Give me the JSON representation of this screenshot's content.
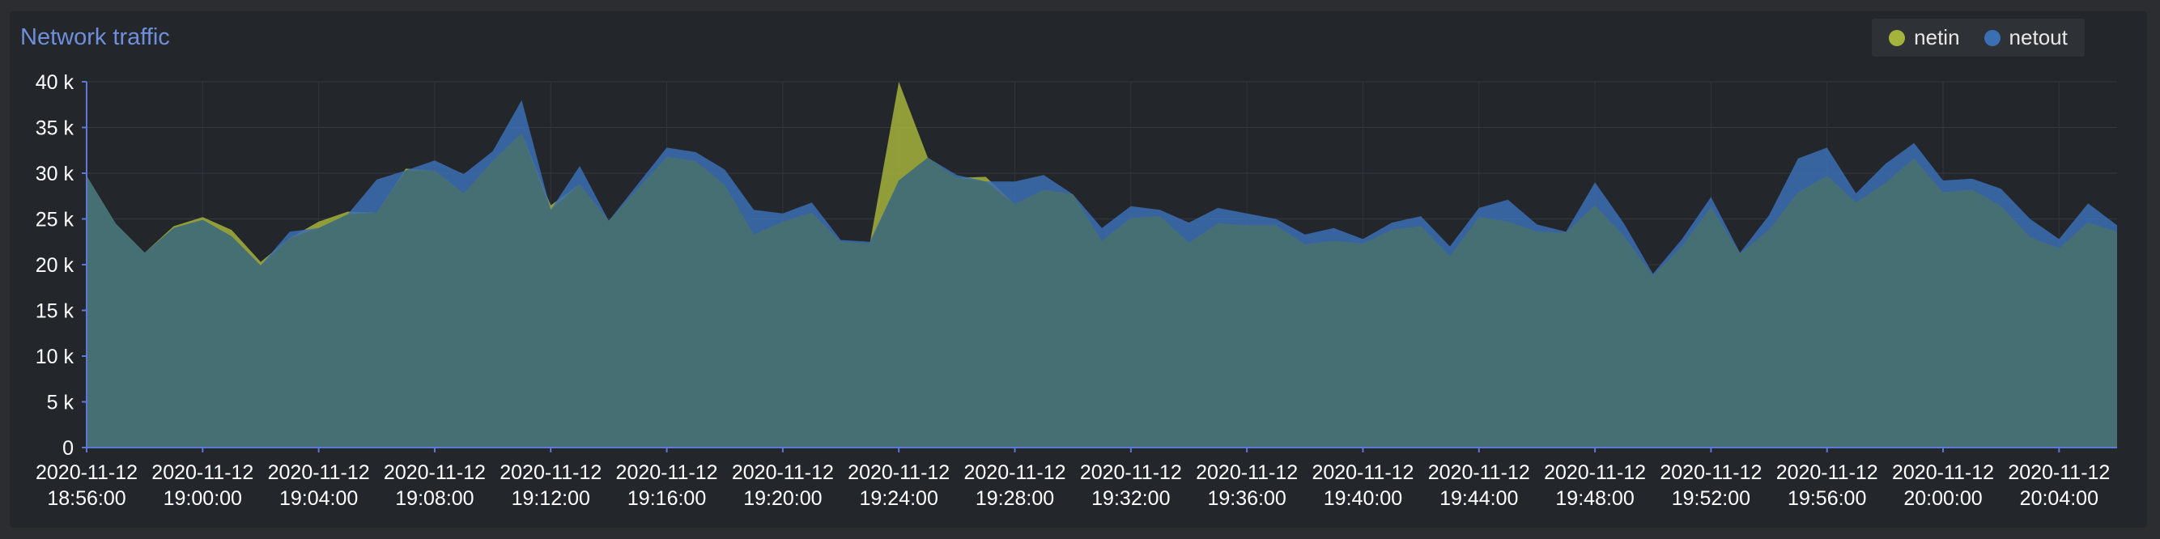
{
  "panel": {
    "title": "Network traffic"
  },
  "colors": {
    "netin": "#a3b33b",
    "netout": "#3b6fb3",
    "overlap": "#466f74",
    "axis": "#5f78d8"
  },
  "chart_data": {
    "type": "area",
    "title": "Network traffic",
    "xlabel": "",
    "ylabel": "",
    "ylim": [
      0,
      40000
    ],
    "yticks": [
      "0",
      "5 k",
      "10 k",
      "15 k",
      "20 k",
      "25 k",
      "30 k",
      "35 k",
      "40 k"
    ],
    "xtick_labels": [
      [
        "2020-11-12",
        "18:56:00"
      ],
      [
        "2020-11-12",
        "19:00:00"
      ],
      [
        "2020-11-12",
        "19:04:00"
      ],
      [
        "2020-11-12",
        "19:08:00"
      ],
      [
        "2020-11-12",
        "19:12:00"
      ],
      [
        "2020-11-12",
        "19:16:00"
      ],
      [
        "2020-11-12",
        "19:20:00"
      ],
      [
        "2020-11-12",
        "19:24:00"
      ],
      [
        "2020-11-12",
        "19:28:00"
      ],
      [
        "2020-11-12",
        "19:32:00"
      ],
      [
        "2020-11-12",
        "19:36:00"
      ],
      [
        "2020-11-12",
        "19:40:00"
      ],
      [
        "2020-11-12",
        "19:44:00"
      ],
      [
        "2020-11-12",
        "19:48:00"
      ],
      [
        "2020-11-12",
        "19:52:00"
      ],
      [
        "2020-11-12",
        "19:56:00"
      ],
      [
        "2020-11-12",
        "20:00:00"
      ],
      [
        "2020-11-12",
        "20:04:00"
      ]
    ],
    "x_start": "2020-11-12 18:56:00",
    "x_step_seconds": 60,
    "grid": true,
    "legend_position": "top-right",
    "series": [
      {
        "name": "netin",
        "values": [
          29700,
          24500,
          21300,
          24200,
          25200,
          23800,
          20300,
          22900,
          24700,
          25800,
          25700,
          30500,
          30300,
          27800,
          31300,
          34400,
          26500,
          28800,
          24800,
          28300,
          31800,
          31300,
          28700,
          23300,
          24700,
          25700,
          22500,
          22300,
          40000,
          31700,
          29500,
          29600,
          26600,
          28200,
          27700,
          22600,
          25100,
          25300,
          22400,
          24500,
          24300,
          24300,
          22200,
          22600,
          22300,
          23800,
          24200,
          20900,
          25200,
          24700,
          23600,
          23500,
          26500,
          23100,
          18800,
          22000,
          26300,
          21200,
          23800,
          27900,
          29700,
          26800,
          28900,
          31600,
          27900,
          28200,
          26400,
          23000,
          21800,
          24600,
          23600
        ],
        "color": "#a3b33b"
      },
      {
        "name": "netout",
        "values": [
          29700,
          24500,
          21300,
          24000,
          24900,
          23100,
          19900,
          23600,
          24000,
          25500,
          29300,
          30300,
          31400,
          29900,
          32400,
          38000,
          26000,
          30800,
          24800,
          28800,
          32800,
          32300,
          30400,
          26000,
          25600,
          26800,
          22700,
          22500,
          29200,
          31700,
          29800,
          29100,
          29100,
          29800,
          27700,
          24000,
          26400,
          26000,
          24600,
          26200,
          25600,
          25000,
          23300,
          24000,
          22800,
          24600,
          25300,
          22000,
          26200,
          27100,
          24400,
          23600,
          29000,
          24500,
          19000,
          22800,
          27400,
          21300,
          25400,
          31600,
          32800,
          27800,
          31000,
          33300,
          29200,
          29400,
          28300,
          25000,
          22800,
          26700,
          24300
        ],
        "color": "#3b6fb3"
      }
    ]
  }
}
